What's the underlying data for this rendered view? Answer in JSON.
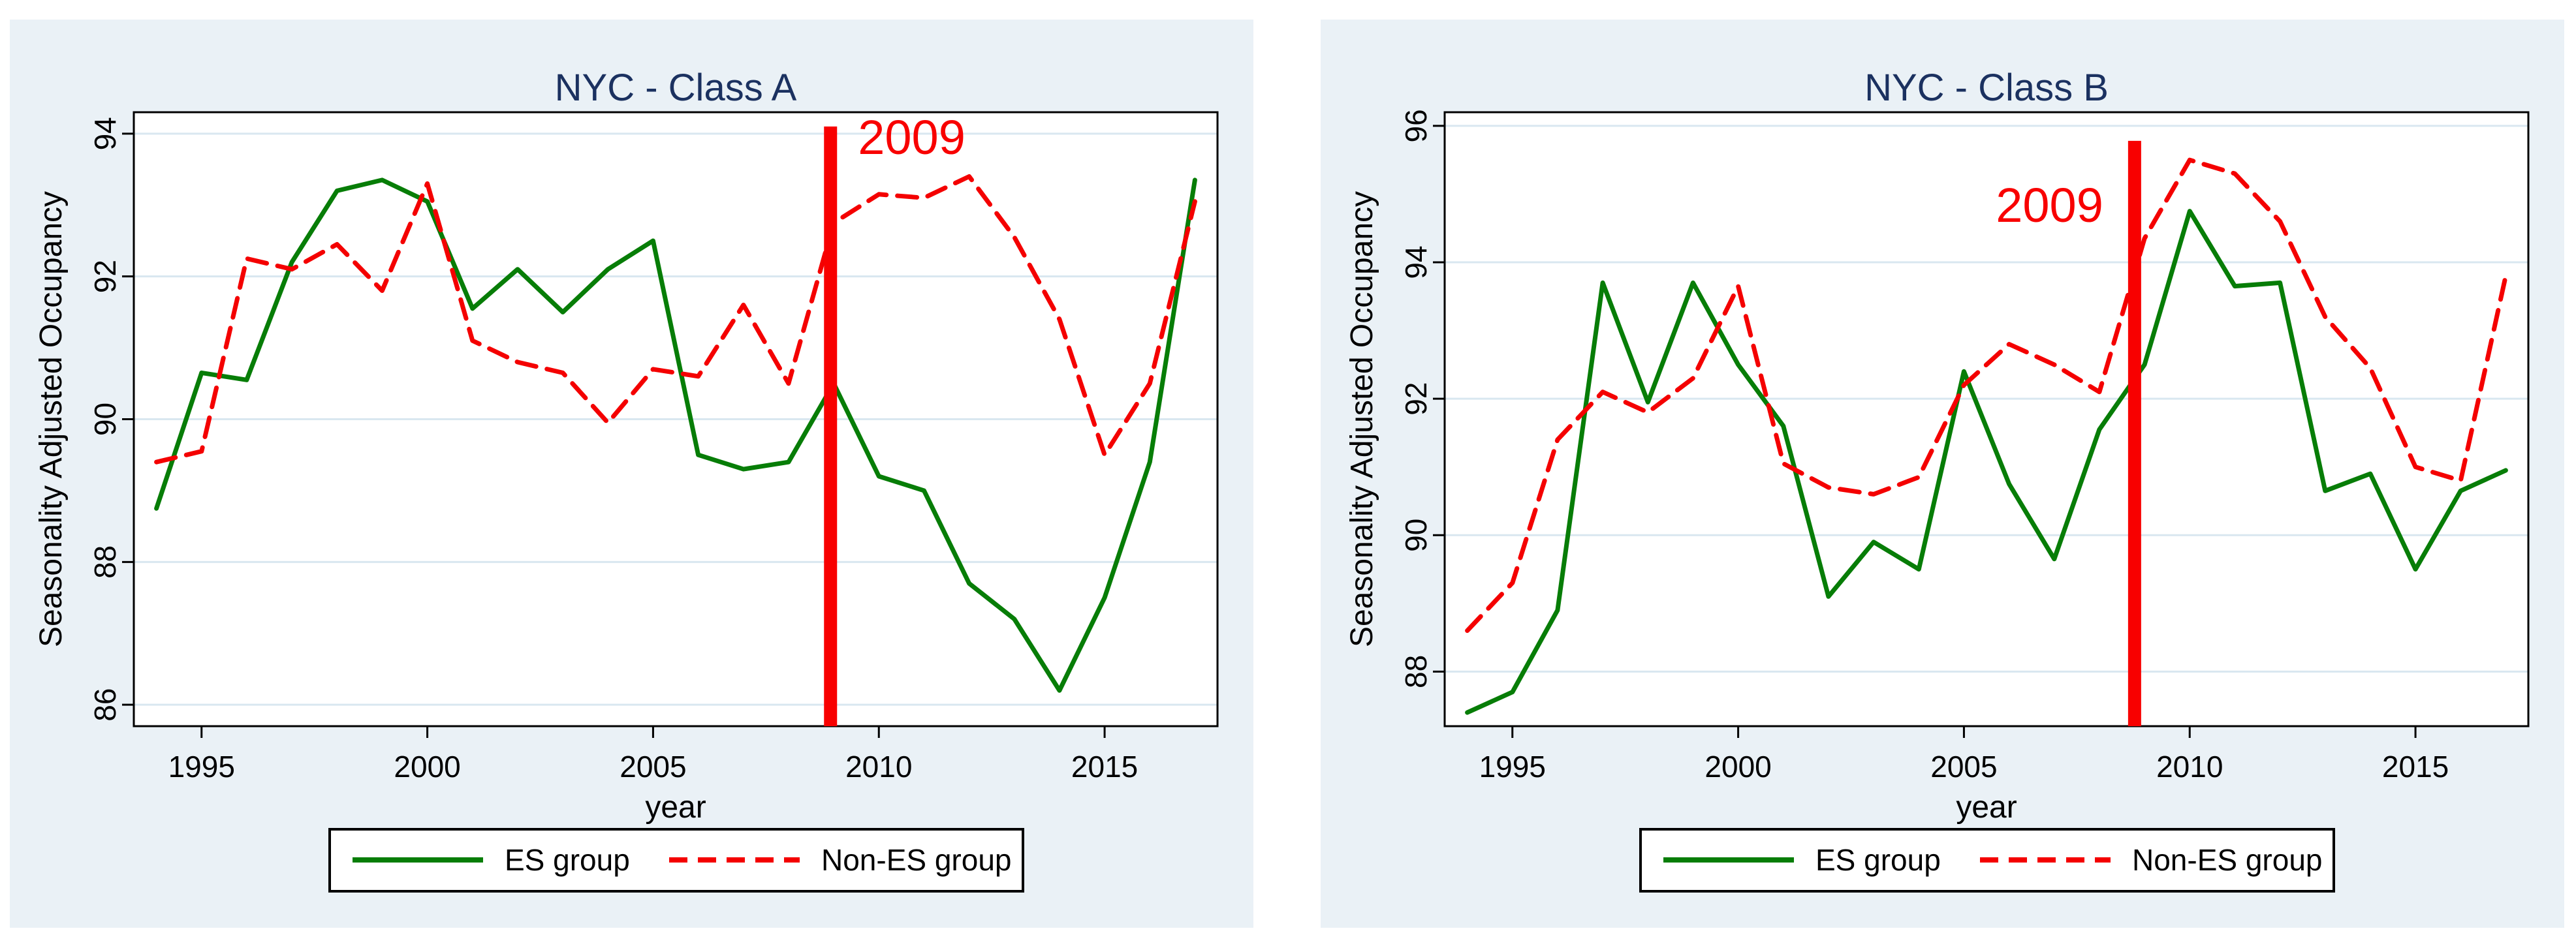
{
  "figure": {
    "background_color": "#ffffff",
    "panel_background_color": "#eaf1f6",
    "plot_background_color": "#ffffff",
    "gridline_color": "#d9e7f0",
    "title_color": "#1b3160",
    "es_color": "#077d07",
    "non_es_color": "#f40000",
    "vline_color": "#f80000",
    "text_color": "#000000"
  },
  "legend": {
    "es_label": "ES group",
    "non_es_label": "Non-ES group"
  },
  "chart_data": [
    {
      "type": "line",
      "title": "NYC - Class A",
      "xlabel": "year",
      "ylabel": "Seasonality Adjusted Occupancy",
      "x": [
        1994,
        1995,
        1996,
        1997,
        1998,
        1999,
        2000,
        2001,
        2002,
        2003,
        2004,
        2005,
        2006,
        2007,
        2008,
        2009,
        2010,
        2011,
        2012,
        2013,
        2014,
        2015,
        2016,
        2017
      ],
      "series": [
        {
          "name": "ES group",
          "color": "#077d07",
          "style": "solid",
          "values": [
            88.75,
            90.65,
            90.55,
            92.2,
            93.2,
            93.35,
            93.05,
            91.55,
            92.1,
            91.5,
            92.1,
            92.5,
            89.5,
            89.3,
            89.4,
            90.5,
            89.2,
            89.0,
            87.7,
            87.2,
            86.2,
            87.5,
            89.4,
            93.35
          ]
        },
        {
          "name": "Non-ES group",
          "color": "#f40000",
          "style": "dashed",
          "values": [
            89.4,
            89.55,
            92.25,
            92.1,
            92.45,
            91.8,
            93.3,
            91.1,
            90.8,
            90.65,
            89.95,
            90.7,
            90.6,
            91.6,
            90.5,
            92.75,
            93.15,
            93.1,
            93.4,
            92.55,
            91.4,
            89.5,
            90.5,
            93.05
          ]
        }
      ],
      "yticks": [
        86,
        88,
        90,
        92,
        94
      ],
      "xticks": [
        1995,
        2000,
        2005,
        2010,
        2015
      ],
      "ylim": [
        85.7,
        94.3
      ],
      "xlim": [
        1993.5,
        2017.5
      ],
      "grid": true,
      "legend_position": "bottom",
      "vline": {
        "x": 2008.93,
        "label": "2009",
        "top_value": 94.1,
        "label_side": "right"
      }
    },
    {
      "type": "line",
      "title": "NYC - Class B",
      "xlabel": "year",
      "ylabel": "Seasonality Adjusted Occupancy",
      "x": [
        1994,
        1995,
        1996,
        1997,
        1998,
        1999,
        2000,
        2001,
        2002,
        2003,
        2004,
        2005,
        2006,
        2007,
        2008,
        2009,
        2010,
        2011,
        2012,
        2013,
        2014,
        2015,
        2016,
        2017
      ],
      "series": [
        {
          "name": "ES group",
          "color": "#077d07",
          "style": "solid",
          "values": [
            87.4,
            87.7,
            88.9,
            93.7,
            91.95,
            93.7,
            92.5,
            91.6,
            89.1,
            89.9,
            89.5,
            92.4,
            90.75,
            89.65,
            91.55,
            92.5,
            94.75,
            93.65,
            93.7,
            90.65,
            90.9,
            89.5,
            90.65,
            90.95
          ]
        },
        {
          "name": "Non-ES group",
          "color": "#f40000",
          "style": "dashed",
          "values": [
            88.6,
            89.3,
            91.4,
            92.1,
            91.8,
            92.3,
            93.65,
            91.05,
            90.7,
            90.6,
            90.85,
            92.2,
            92.8,
            92.5,
            92.1,
            94.35,
            95.5,
            95.3,
            94.6,
            93.2,
            92.45,
            91.0,
            90.8,
            93.8
          ]
        }
      ],
      "yticks": [
        88,
        90,
        92,
        94,
        96
      ],
      "xticks": [
        1995,
        2000,
        2005,
        2010,
        2015
      ],
      "ylim": [
        87.2,
        96.2
      ],
      "xlim": [
        1993.5,
        2017.5
      ],
      "grid": true,
      "legend_position": "bottom",
      "vline": {
        "x": 2008.78,
        "label": "2009",
        "top_value": 95.78,
        "label_side": "left"
      }
    }
  ]
}
